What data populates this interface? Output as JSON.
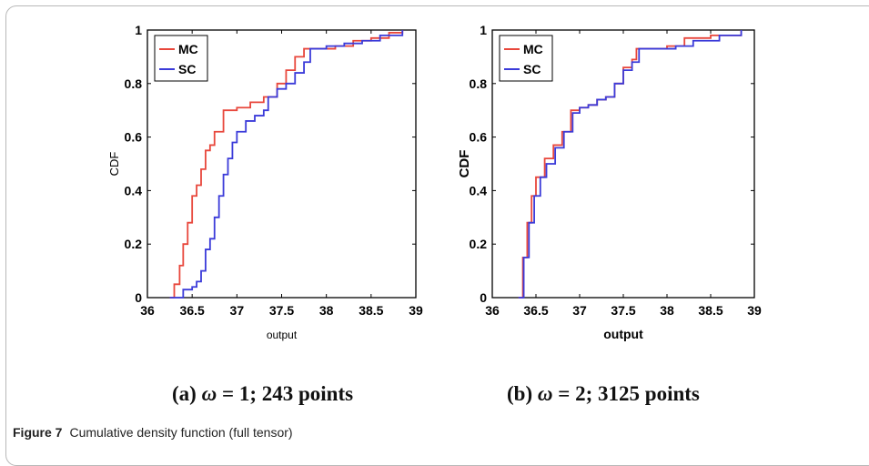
{
  "figure": {
    "label": "Figure 7",
    "caption": "Cumulative density function (full tensor)"
  },
  "colors": {
    "MC": "#e8473c",
    "SC": "#3b3bd9",
    "axis": "#000000",
    "frame": "#b8b8b8"
  },
  "chart_data": [
    {
      "type": "line",
      "subcaption_prefix": "(a) ",
      "subcaption_omega": "ω",
      "subcaption_rest": " = 1; 243 points",
      "xlabel": "output",
      "ylabel": "CDF",
      "xlim": [
        36,
        39
      ],
      "ylim": [
        0,
        1
      ],
      "xticks": [
        36,
        36.5,
        37,
        37.5,
        38,
        38.5,
        39
      ],
      "yticks": [
        0,
        0.2,
        0.4,
        0.6,
        0.8,
        1
      ],
      "legend_position": "top-left",
      "series": [
        {
          "name": "MC",
          "points": [
            [
              36.25,
              0
            ],
            [
              36.3,
              0.05
            ],
            [
              36.36,
              0.12
            ],
            [
              36.4,
              0.2
            ],
            [
              36.45,
              0.28
            ],
            [
              36.5,
              0.38
            ],
            [
              36.55,
              0.42
            ],
            [
              36.6,
              0.48
            ],
            [
              36.65,
              0.55
            ],
            [
              36.7,
              0.57
            ],
            [
              36.75,
              0.62
            ],
            [
              36.85,
              0.7
            ],
            [
              37.0,
              0.71
            ],
            [
              37.15,
              0.73
            ],
            [
              37.3,
              0.75
            ],
            [
              37.45,
              0.8
            ],
            [
              37.55,
              0.85
            ],
            [
              37.65,
              0.9
            ],
            [
              37.75,
              0.93
            ],
            [
              37.9,
              0.93
            ],
            [
              38.1,
              0.94
            ],
            [
              38.3,
              0.96
            ],
            [
              38.5,
              0.97
            ],
            [
              38.7,
              0.99
            ],
            [
              38.85,
              1.0
            ]
          ]
        },
        {
          "name": "SC",
          "points": [
            [
              36.25,
              0
            ],
            [
              36.4,
              0.03
            ],
            [
              36.5,
              0.04
            ],
            [
              36.55,
              0.06
            ],
            [
              36.6,
              0.1
            ],
            [
              36.65,
              0.18
            ],
            [
              36.7,
              0.22
            ],
            [
              36.75,
              0.3
            ],
            [
              36.8,
              0.38
            ],
            [
              36.85,
              0.46
            ],
            [
              36.9,
              0.52
            ],
            [
              36.95,
              0.58
            ],
            [
              37.0,
              0.62
            ],
            [
              37.1,
              0.66
            ],
            [
              37.2,
              0.68
            ],
            [
              37.3,
              0.7
            ],
            [
              37.35,
              0.75
            ],
            [
              37.45,
              0.78
            ],
            [
              37.55,
              0.8
            ],
            [
              37.65,
              0.84
            ],
            [
              37.75,
              0.88
            ],
            [
              37.82,
              0.93
            ],
            [
              38.0,
              0.94
            ],
            [
              38.2,
              0.95
            ],
            [
              38.4,
              0.96
            ],
            [
              38.6,
              0.98
            ],
            [
              38.85,
              1.0
            ]
          ]
        }
      ]
    },
    {
      "type": "line",
      "subcaption_prefix": "(b) ",
      "subcaption_omega": "ω",
      "subcaption_rest": " = 2; 3125 points",
      "xlabel": "output",
      "ylabel": "CDF",
      "xlim": [
        36,
        39
      ],
      "ylim": [
        0,
        1
      ],
      "xticks": [
        36,
        36.5,
        37,
        37.5,
        38,
        38.5,
        39
      ],
      "yticks": [
        0,
        0.2,
        0.4,
        0.6,
        0.8,
        1
      ],
      "legend_position": "top-left",
      "series": [
        {
          "name": "MC",
          "points": [
            [
              36.3,
              0
            ],
            [
              36.35,
              0.15
            ],
            [
              36.4,
              0.28
            ],
            [
              36.45,
              0.38
            ],
            [
              36.5,
              0.45
            ],
            [
              36.6,
              0.52
            ],
            [
              36.7,
              0.57
            ],
            [
              36.8,
              0.62
            ],
            [
              36.9,
              0.7
            ],
            [
              37.0,
              0.71
            ],
            [
              37.1,
              0.72
            ],
            [
              37.2,
              0.74
            ],
            [
              37.3,
              0.75
            ],
            [
              37.4,
              0.8
            ],
            [
              37.5,
              0.86
            ],
            [
              37.6,
              0.89
            ],
            [
              37.65,
              0.93
            ],
            [
              37.8,
              0.93
            ],
            [
              38.0,
              0.94
            ],
            [
              38.2,
              0.97
            ],
            [
              38.5,
              0.98
            ],
            [
              38.85,
              1.0
            ]
          ]
        },
        {
          "name": "SC",
          "points": [
            [
              36.3,
              0
            ],
            [
              36.36,
              0.15
            ],
            [
              36.42,
              0.28
            ],
            [
              36.48,
              0.38
            ],
            [
              36.55,
              0.45
            ],
            [
              36.62,
              0.5
            ],
            [
              36.72,
              0.56
            ],
            [
              36.82,
              0.62
            ],
            [
              36.92,
              0.69
            ],
            [
              37.0,
              0.71
            ],
            [
              37.1,
              0.72
            ],
            [
              37.2,
              0.74
            ],
            [
              37.3,
              0.75
            ],
            [
              37.4,
              0.8
            ],
            [
              37.5,
              0.85
            ],
            [
              37.6,
              0.88
            ],
            [
              37.68,
              0.93
            ],
            [
              37.85,
              0.93
            ],
            [
              38.1,
              0.94
            ],
            [
              38.3,
              0.96
            ],
            [
              38.6,
              0.98
            ],
            [
              38.85,
              1.0
            ]
          ]
        }
      ]
    }
  ]
}
